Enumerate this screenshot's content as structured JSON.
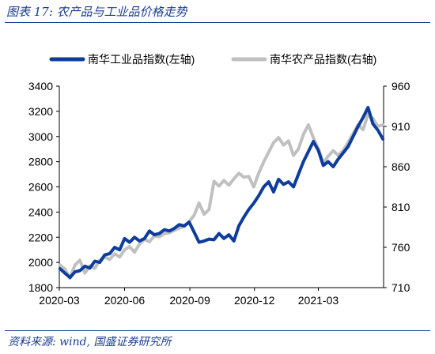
{
  "figure_title": "图表 17:  农产品与工业品价格走势",
  "source_note": "资料来源: wind, 国盛证券研究所",
  "chart_data": {
    "type": "line",
    "x_ticks": [
      "2020-03",
      "2020-06",
      "2020-09",
      "2020-12",
      "2021-03"
    ],
    "left_axis": {
      "ylim": [
        1800,
        3400
      ],
      "ticks": [
        1800,
        2000,
        2200,
        2400,
        2600,
        2800,
        3000,
        3200,
        3400
      ]
    },
    "right_axis": {
      "ylim": [
        710,
        960
      ],
      "ticks": [
        710,
        760,
        810,
        860,
        910,
        960
      ]
    },
    "legend_position": "top",
    "grid": false,
    "series": [
      {
        "name": "南华工业品指数(左轴)",
        "axis": "left",
        "color": "#0d3d9c",
        "points": [
          [
            "2020-03-02",
            1950
          ],
          [
            "2020-03-09",
            1915
          ],
          [
            "2020-03-16",
            1880
          ],
          [
            "2020-03-23",
            1925
          ],
          [
            "2020-03-30",
            1935
          ],
          [
            "2020-04-06",
            1970
          ],
          [
            "2020-04-13",
            1955
          ],
          [
            "2020-04-20",
            2010
          ],
          [
            "2020-04-27",
            2000
          ],
          [
            "2020-05-04",
            2060
          ],
          [
            "2020-05-11",
            2070
          ],
          [
            "2020-05-18",
            2120
          ],
          [
            "2020-05-25",
            2100
          ],
          [
            "2020-06-01",
            2190
          ],
          [
            "2020-06-08",
            2160
          ],
          [
            "2020-06-15",
            2200
          ],
          [
            "2020-06-22",
            2170
          ],
          [
            "2020-06-29",
            2190
          ],
          [
            "2020-07-06",
            2250
          ],
          [
            "2020-07-13",
            2220
          ],
          [
            "2020-07-20",
            2230
          ],
          [
            "2020-07-27",
            2260
          ],
          [
            "2020-08-03",
            2250
          ],
          [
            "2020-08-10",
            2270
          ],
          [
            "2020-08-17",
            2300
          ],
          [
            "2020-08-24",
            2290
          ],
          [
            "2020-08-31",
            2320
          ],
          [
            "2020-09-07",
            2240
          ],
          [
            "2020-09-14",
            2160
          ],
          [
            "2020-09-21",
            2170
          ],
          [
            "2020-09-28",
            2185
          ],
          [
            "2020-10-05",
            2180
          ],
          [
            "2020-10-12",
            2230
          ],
          [
            "2020-10-19",
            2190
          ],
          [
            "2020-10-26",
            2220
          ],
          [
            "2020-11-02",
            2170
          ],
          [
            "2020-11-09",
            2290
          ],
          [
            "2020-11-16",
            2360
          ],
          [
            "2020-11-23",
            2420
          ],
          [
            "2020-11-30",
            2470
          ],
          [
            "2020-12-07",
            2530
          ],
          [
            "2020-12-14",
            2600
          ],
          [
            "2020-12-21",
            2640
          ],
          [
            "2020-12-28",
            2560
          ],
          [
            "2021-01-04",
            2660
          ],
          [
            "2021-01-11",
            2620
          ],
          [
            "2021-01-18",
            2640
          ],
          [
            "2021-01-25",
            2600
          ],
          [
            "2021-02-01",
            2700
          ],
          [
            "2021-02-08",
            2800
          ],
          [
            "2021-02-15",
            2880
          ],
          [
            "2021-02-22",
            2960
          ],
          [
            "2021-03-01",
            2890
          ],
          [
            "2021-03-08",
            2770
          ],
          [
            "2021-03-15",
            2800
          ],
          [
            "2021-03-22",
            2760
          ],
          [
            "2021-03-29",
            2820
          ],
          [
            "2021-04-05",
            2870
          ],
          [
            "2021-04-12",
            2920
          ],
          [
            "2021-04-19",
            3000
          ],
          [
            "2021-04-26",
            3080
          ],
          [
            "2021-05-03",
            3150
          ],
          [
            "2021-05-10",
            3230
          ],
          [
            "2021-05-17",
            3100
          ],
          [
            "2021-05-24",
            3050
          ],
          [
            "2021-05-31",
            2980
          ]
        ]
      },
      {
        "name": "南华农产品指数(右轴)",
        "axis": "right",
        "color": "#c0c0c0",
        "points": [
          [
            "2020-03-02",
            738
          ],
          [
            "2020-03-09",
            733
          ],
          [
            "2020-03-16",
            722
          ],
          [
            "2020-03-23",
            738
          ],
          [
            "2020-03-30",
            744
          ],
          [
            "2020-04-06",
            728
          ],
          [
            "2020-04-13",
            737
          ],
          [
            "2020-04-20",
            734
          ],
          [
            "2020-04-27",
            744
          ],
          [
            "2020-05-04",
            748
          ],
          [
            "2020-05-11",
            745
          ],
          [
            "2020-05-18",
            752
          ],
          [
            "2020-05-25",
            748
          ],
          [
            "2020-06-01",
            757
          ],
          [
            "2020-06-08",
            761
          ],
          [
            "2020-06-15",
            754
          ],
          [
            "2020-06-22",
            764
          ],
          [
            "2020-06-29",
            770
          ],
          [
            "2020-07-06",
            767
          ],
          [
            "2020-07-13",
            774
          ],
          [
            "2020-07-20",
            773
          ],
          [
            "2020-07-27",
            777
          ],
          [
            "2020-08-03",
            778
          ],
          [
            "2020-08-10",
            781
          ],
          [
            "2020-08-17",
            784
          ],
          [
            "2020-08-24",
            786
          ],
          [
            "2020-08-31",
            792
          ],
          [
            "2020-09-07",
            800
          ],
          [
            "2020-09-14",
            815
          ],
          [
            "2020-09-21",
            801
          ],
          [
            "2020-09-28",
            807
          ],
          [
            "2020-10-05",
            842
          ],
          [
            "2020-10-12",
            836
          ],
          [
            "2020-10-19",
            843
          ],
          [
            "2020-10-26",
            837
          ],
          [
            "2020-11-02",
            845
          ],
          [
            "2020-11-09",
            852
          ],
          [
            "2020-11-16",
            847
          ],
          [
            "2020-11-23",
            848
          ],
          [
            "2020-11-30",
            835
          ],
          [
            "2020-12-07",
            852
          ],
          [
            "2020-12-14",
            866
          ],
          [
            "2020-12-21",
            878
          ],
          [
            "2020-12-28",
            890
          ],
          [
            "2021-01-04",
            896
          ],
          [
            "2021-01-11",
            887
          ],
          [
            "2021-01-18",
            892
          ],
          [
            "2021-01-25",
            874
          ],
          [
            "2021-02-01",
            882
          ],
          [
            "2021-02-08",
            900
          ],
          [
            "2021-02-15",
            912
          ],
          [
            "2021-02-22",
            896
          ],
          [
            "2021-03-01",
            882
          ],
          [
            "2021-03-08",
            865
          ],
          [
            "2021-03-15",
            873
          ],
          [
            "2021-03-22",
            880
          ],
          [
            "2021-03-29",
            874
          ],
          [
            "2021-04-05",
            880
          ],
          [
            "2021-04-12",
            890
          ],
          [
            "2021-04-19",
            901
          ],
          [
            "2021-04-26",
            912
          ],
          [
            "2021-05-03",
            906
          ],
          [
            "2021-05-10",
            925
          ],
          [
            "2021-05-17",
            920
          ],
          [
            "2021-05-24",
            910
          ],
          [
            "2021-05-31",
            912
          ]
        ]
      }
    ]
  }
}
